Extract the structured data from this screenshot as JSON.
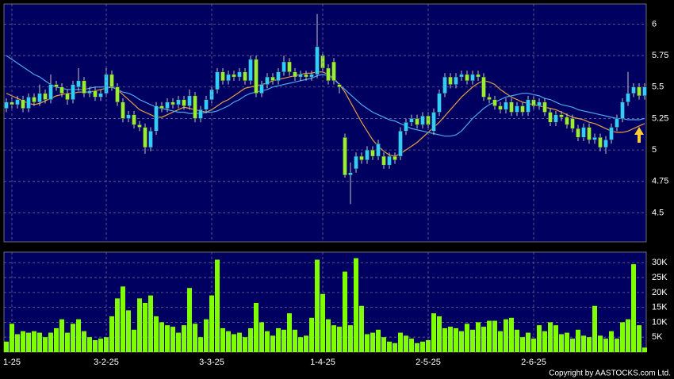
{
  "chart_data": [
    {
      "type": "candlestick",
      "open": [
        5.33,
        5.38,
        5.36,
        5.4,
        5.33,
        5.42,
        5.38,
        5.45,
        5.4,
        5.52,
        5.5,
        5.45,
        5.4,
        5.5,
        5.55,
        5.45,
        5.47,
        5.42,
        5.45,
        5.6,
        5.5,
        5.38,
        5.25,
        5.28,
        5.2,
        5.18,
        5.02,
        5.15,
        5.35,
        5.33,
        5.38,
        5.36,
        5.4,
        5.35,
        5.43,
        5.25,
        5.32,
        5.4,
        5.48,
        5.62,
        5.55,
        5.6,
        5.58,
        5.62,
        5.55,
        5.72,
        5.45,
        5.52,
        5.58,
        5.55,
        5.62,
        5.7,
        5.62,
        5.58,
        5.6,
        5.58,
        5.6,
        5.75,
        5.65,
        5.7,
        5.52,
        5.1,
        4.8,
        4.85,
        4.95,
        4.92,
        5.0,
        4.95,
        4.95,
        4.88,
        4.95,
        4.95,
        5.15,
        5.22,
        5.25,
        5.2,
        5.27,
        5.15,
        5.3,
        5.45,
        5.58,
        5.52,
        5.58,
        5.6,
        5.55,
        5.6,
        5.58,
        5.42,
        5.4,
        5.35,
        5.32,
        5.38,
        5.3,
        5.35,
        5.3,
        5.4,
        5.35,
        5.38,
        5.3,
        5.22,
        5.28,
        5.26,
        5.25,
        5.17,
        5.1,
        5.18,
        5.08,
        5.1,
        5.02,
        5.08,
        5.18,
        5.25,
        5.38,
        5.45,
        5.5,
        5.43
      ],
      "high": [
        5.41,
        5.42,
        5.43,
        5.43,
        5.45,
        5.45,
        5.52,
        5.48,
        5.6,
        5.55,
        5.53,
        5.48,
        5.55,
        5.65,
        5.58,
        5.5,
        5.5,
        5.48,
        5.65,
        5.63,
        5.53,
        5.41,
        5.31,
        5.31,
        5.23,
        5.21,
        5.18,
        5.38,
        5.38,
        5.41,
        5.41,
        5.43,
        5.43,
        5.48,
        5.46,
        5.35,
        5.43,
        5.51,
        5.65,
        5.65,
        5.63,
        5.63,
        5.65,
        5.65,
        5.75,
        5.75,
        5.55,
        5.61,
        5.61,
        5.65,
        5.75,
        5.73,
        5.65,
        5.63,
        5.63,
        5.63,
        6.08,
        5.78,
        5.68,
        5.73,
        5.53,
        5.13,
        4.9,
        4.98,
        4.98,
        5.03,
        5.03,
        5.08,
        4.98,
        4.98,
        4.98,
        5.18,
        5.25,
        5.28,
        5.28,
        5.3,
        5.3,
        5.33,
        5.48,
        5.61,
        5.61,
        5.61,
        5.63,
        5.63,
        5.63,
        5.63,
        5.61,
        5.45,
        5.43,
        5.38,
        5.41,
        5.41,
        5.38,
        5.38,
        5.43,
        5.43,
        5.41,
        5.41,
        5.33,
        5.31,
        5.31,
        5.29,
        5.28,
        5.2,
        5.21,
        5.21,
        5.13,
        5.13,
        5.11,
        5.21,
        5.28,
        5.41,
        5.62,
        5.53,
        5.53,
        5.53
      ],
      "low": [
        5.3,
        5.33,
        5.33,
        5.3,
        5.3,
        5.35,
        5.35,
        5.37,
        5.37,
        5.47,
        5.42,
        5.36,
        5.37,
        5.47,
        5.42,
        5.42,
        5.39,
        5.39,
        5.42,
        5.47,
        5.35,
        5.22,
        5.22,
        5.17,
        5.15,
        4.97,
        4.99,
        5.12,
        5.3,
        5.3,
        5.33,
        5.33,
        5.32,
        5.32,
        5.22,
        5.22,
        5.29,
        5.37,
        5.45,
        5.52,
        5.52,
        5.55,
        5.55,
        5.52,
        5.52,
        5.42,
        5.42,
        5.49,
        5.52,
        5.52,
        5.59,
        5.59,
        5.55,
        5.55,
        5.55,
        5.55,
        5.57,
        5.62,
        5.52,
        5.52,
        5.45,
        4.78,
        4.57,
        4.82,
        4.89,
        4.89,
        4.92,
        4.92,
        4.85,
        4.85,
        4.89,
        4.92,
        5.12,
        5.19,
        5.17,
        5.17,
        5.17,
        5.12,
        5.27,
        5.42,
        5.49,
        5.49,
        5.55,
        5.52,
        5.52,
        5.55,
        5.39,
        5.37,
        5.32,
        5.29,
        5.29,
        5.27,
        5.27,
        5.27,
        5.27,
        5.32,
        5.32,
        5.27,
        5.19,
        5.19,
        5.23,
        5.17,
        5.14,
        5.07,
        5.07,
        5.05,
        5.05,
        4.99,
        4.97,
        5.05,
        5.15,
        5.22,
        5.35,
        5.42,
        5.4,
        5.4
      ],
      "close": [
        5.38,
        5.36,
        5.4,
        5.33,
        5.42,
        5.38,
        5.45,
        5.4,
        5.52,
        5.5,
        5.45,
        5.4,
        5.52,
        5.55,
        5.45,
        5.47,
        5.42,
        5.45,
        5.6,
        5.5,
        5.38,
        5.25,
        5.28,
        5.2,
        5.18,
        5.02,
        5.15,
        5.35,
        5.33,
        5.38,
        5.36,
        5.4,
        5.35,
        5.43,
        5.25,
        5.32,
        5.4,
        5.48,
        5.62,
        5.55,
        5.6,
        5.58,
        5.62,
        5.55,
        5.72,
        5.45,
        5.52,
        5.58,
        5.55,
        5.62,
        5.7,
        5.62,
        5.58,
        5.6,
        5.58,
        5.6,
        5.82,
        5.65,
        5.55,
        5.55,
        5.5,
        4.8,
        4.82,
        4.95,
        4.92,
        5.0,
        4.95,
        5.05,
        4.88,
        4.95,
        4.92,
        5.15,
        5.22,
        5.25,
        5.2,
        5.27,
        5.2,
        5.3,
        5.45,
        5.58,
        5.52,
        5.58,
        5.6,
        5.55,
        5.6,
        5.58,
        5.42,
        5.4,
        5.35,
        5.32,
        5.38,
        5.3,
        5.35,
        5.3,
        5.4,
        5.35,
        5.38,
        5.3,
        5.22,
        5.28,
        5.26,
        5.2,
        5.17,
        5.1,
        5.18,
        5.08,
        5.1,
        5.02,
        5.08,
        5.18,
        5.25,
        5.38,
        5.45,
        5.5,
        5.43,
        5.5
      ],
      "up_color": "#33ccff",
      "down_color": "#99ee33",
      "wick_color": "#c8c8c8",
      "lines": [
        {
          "color": "#e8a040",
          "values": [
            5.45,
            5.43,
            5.41,
            5.39,
            5.37,
            5.36,
            5.37,
            5.39,
            5.41,
            5.43,
            5.44,
            5.45,
            5.45,
            5.46,
            5.46,
            5.46,
            5.47,
            5.48,
            5.49,
            5.5,
            5.48,
            5.44,
            5.4,
            5.36,
            5.32,
            5.3,
            5.28,
            5.26,
            5.26,
            5.28,
            5.3,
            5.32,
            5.34,
            5.33,
            5.32,
            5.31,
            5.3,
            5.32,
            5.35,
            5.38,
            5.4,
            5.43,
            5.46,
            5.49,
            5.5,
            5.51,
            5.52,
            5.53,
            5.55,
            5.56,
            5.57,
            5.58,
            5.59,
            5.6,
            5.61,
            5.61,
            5.62,
            5.62,
            5.6,
            5.57,
            5.52,
            5.46,
            5.38,
            5.3,
            5.22,
            5.15,
            5.08,
            5.03,
            4.99,
            4.96,
            4.95,
            4.97,
            5.0,
            5.03,
            5.06,
            5.1,
            5.14,
            5.18,
            5.22,
            5.27,
            5.32,
            5.37,
            5.42,
            5.46,
            5.5,
            5.53,
            5.55,
            5.54,
            5.52,
            5.48,
            5.45,
            5.42,
            5.4,
            5.38,
            5.37,
            5.36,
            5.35,
            5.34,
            5.33,
            5.32,
            5.3,
            5.28,
            5.26,
            5.25,
            5.24,
            5.22,
            5.21,
            5.19,
            5.17,
            5.15,
            5.14,
            5.14,
            5.15,
            5.17,
            5.19,
            5.21
          ]
        },
        {
          "color": "#4fa8f0",
          "values": [
            5.75,
            5.72,
            5.69,
            5.66,
            5.63,
            5.6,
            5.58,
            5.55,
            5.52,
            5.5,
            5.49,
            5.48,
            5.48,
            5.48,
            5.48,
            5.49,
            5.5,
            5.5,
            5.5,
            5.5,
            5.48,
            5.46,
            5.45,
            5.43,
            5.4,
            5.38,
            5.36,
            5.34,
            5.33,
            5.32,
            5.31,
            5.3,
            5.3,
            5.29,
            5.29,
            5.29,
            5.3,
            5.3,
            5.31,
            5.33,
            5.35,
            5.38,
            5.4,
            5.43,
            5.45,
            5.46,
            5.47,
            5.48,
            5.5,
            5.51,
            5.52,
            5.53,
            5.54,
            5.55,
            5.56,
            5.57,
            5.59,
            5.6,
            5.59,
            5.56,
            5.52,
            5.48,
            5.44,
            5.4,
            5.36,
            5.33,
            5.3,
            5.28,
            5.26,
            5.24,
            5.23,
            5.21,
            5.19,
            5.17,
            5.16,
            5.15,
            5.14,
            5.13,
            5.12,
            5.11,
            5.11,
            5.12,
            5.15,
            5.2,
            5.25,
            5.29,
            5.33,
            5.36,
            5.38,
            5.4,
            5.42,
            5.43,
            5.44,
            5.45,
            5.45,
            5.44,
            5.43,
            5.41,
            5.4,
            5.38,
            5.36,
            5.35,
            5.34,
            5.32,
            5.31,
            5.3,
            5.29,
            5.28,
            5.27,
            5.26,
            5.25,
            5.25,
            5.24,
            5.24,
            5.24,
            5.25
          ]
        }
      ],
      "ylim": [
        4.27,
        6.16
      ],
      "yticks": [
        4.5,
        4.75,
        5,
        5.25,
        5.5,
        5.75,
        6
      ],
      "grid": true
    },
    {
      "type": "bar",
      "categories": [
        null,
        "1-25",
        null,
        null,
        null,
        null,
        null,
        null,
        null,
        null,
        null,
        null,
        null,
        null,
        null,
        null,
        null,
        null,
        "3-2-25",
        null,
        null,
        null,
        null,
        null,
        null,
        null,
        null,
        null,
        null,
        null,
        null,
        null,
        null,
        null,
        null,
        null,
        null,
        "3-3-25",
        null,
        null,
        null,
        null,
        null,
        null,
        null,
        null,
        null,
        null,
        null,
        null,
        null,
        null,
        null,
        null,
        null,
        null,
        null,
        "1-4-25",
        null,
        null,
        null,
        null,
        null,
        null,
        null,
        null,
        null,
        null,
        null,
        null,
        null,
        null,
        null,
        null,
        null,
        null,
        "2-5-25",
        null,
        null,
        null,
        null,
        null,
        null,
        null,
        null,
        null,
        null,
        null,
        null,
        null,
        null,
        null,
        null,
        null,
        null,
        "2-6-25",
        null,
        null,
        null,
        null,
        null,
        null,
        null,
        null,
        null,
        null,
        null,
        null,
        null,
        null,
        null,
        null,
        null,
        null,
        null,
        null
      ],
      "values": [
        3500,
        9500,
        6000,
        7000,
        6500,
        7000,
        6500,
        5000,
        6500,
        8000,
        11000,
        6500,
        9500,
        11000,
        7000,
        5000,
        4000,
        4500,
        5000,
        12000,
        18000,
        22000,
        14000,
        7500,
        18000,
        16500,
        19000,
        12000,
        10000,
        9000,
        8500,
        6500,
        9000,
        21500,
        9500,
        5000,
        11000,
        19000,
        31000,
        8000,
        7000,
        6000,
        6500,
        5000,
        8000,
        16500,
        10000,
        7000,
        5500,
        8000,
        7500,
        13000,
        7500,
        5000,
        5500,
        11500,
        31000,
        19500,
        11000,
        9000,
        8500,
        27000,
        9000,
        31500,
        15500,
        6000,
        6500,
        7500,
        5000,
        3500,
        3000,
        6500,
        5500,
        4500,
        3000,
        3500,
        4000,
        13000,
        12000,
        8000,
        8500,
        8000,
        7000,
        9500,
        7500,
        10000,
        8500,
        10500,
        10500,
        7000,
        11000,
        11500,
        7500,
        5000,
        6500,
        4500,
        9000,
        7000,
        10000,
        9000,
        6000,
        6500,
        4500,
        7500,
        5500,
        5000,
        15500,
        5500,
        4500,
        7000,
        4500,
        10000,
        11000,
        29500,
        9000,
        1500
      ],
      "color": "#7fff00",
      "ylim": [
        0,
        33000
      ],
      "yticks": [
        {
          "value": 5000,
          "label": "5K"
        },
        {
          "value": 10000,
          "label": "10K"
        },
        {
          "value": 15000,
          "label": "15K"
        },
        {
          "value": 20000,
          "label": "20K"
        },
        {
          "value": 25000,
          "label": "25K"
        },
        {
          "value": 30000,
          "label": "30K"
        }
      ],
      "grid": true
    }
  ],
  "footer": "Copyright by AASTOCKS.com Ltd."
}
